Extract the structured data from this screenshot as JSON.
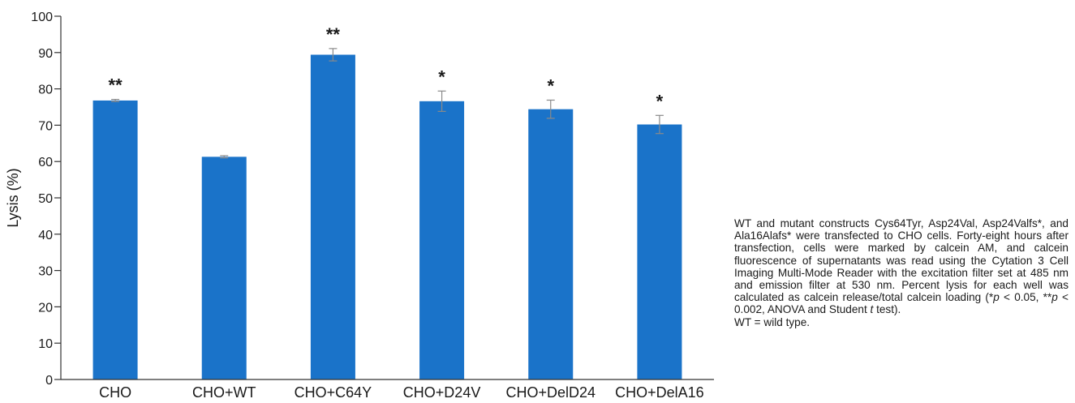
{
  "chart_data": {
    "type": "bar",
    "ylabel": "Lysis (%)",
    "ylim": [
      0,
      100
    ],
    "yticks": [
      0,
      10,
      20,
      30,
      40,
      50,
      60,
      70,
      80,
      90,
      100
    ],
    "categories": [
      "CHO",
      "CHO+WT",
      "CHO+C64Y",
      "CHO+D24V",
      "CHO+DelD24",
      "CHO+DelA16"
    ],
    "values": [
      76.8,
      61.3,
      89.4,
      76.6,
      74.4,
      70.2
    ],
    "errors": [
      0.3,
      0.3,
      1.7,
      2.8,
      2.5,
      2.5
    ],
    "significance": [
      "**",
      "",
      "**",
      "*",
      "*",
      "*"
    ],
    "bar_color": "#1a73c9",
    "error_color": "#8a8a8a",
    "grid": false,
    "legend": "none"
  },
  "caption": {
    "line1": "WT and mutant constructs Cys64Tyr, Asp24Val, Asp24Valfs*, and Ala16Alafs* were transfected to CHO cells. Forty-eight hours after transfection, cells were marked by calcein AM, and calcein fluorescence of supernatants was read using the Cytation 3 Cell Imaging Multi-Mode Reader with the excitation filter set at 485 nm and emission filter at 530 nm. Percent lysis for each well was calculated as calcein release/total calcein loading (",
    "p_symbol": "p",
    "stat1": " < 0.05, **",
    "stat2": " < 0.002, ANOVA and Student ",
    "t_symbol": "t",
    "end": " test).",
    "line2": "WT = wild type."
  }
}
